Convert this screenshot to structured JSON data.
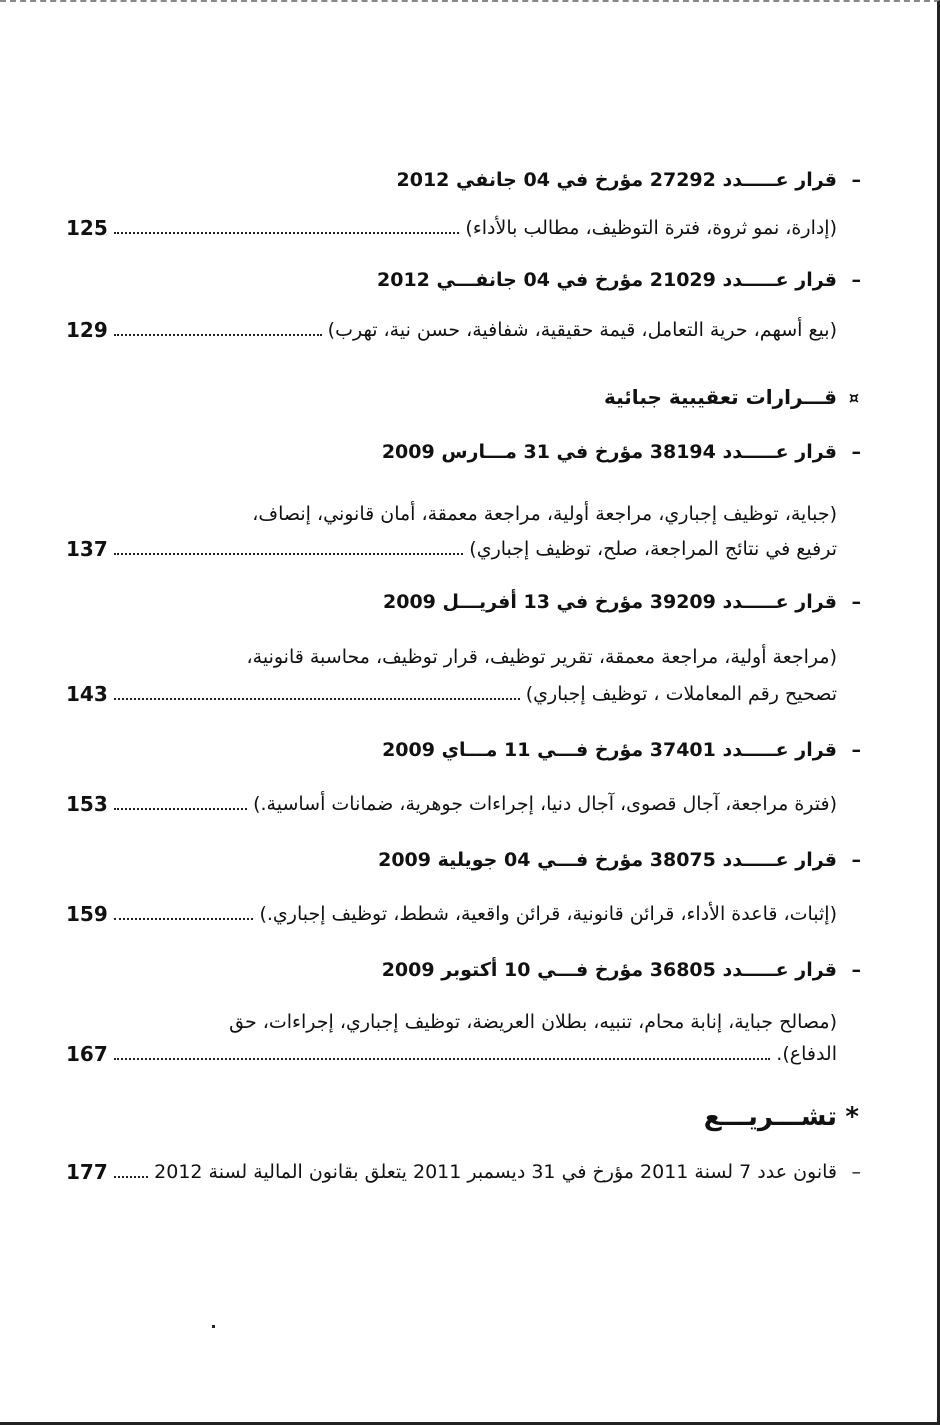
{
  "groups": [
    {
      "entries": [
        {
          "heading": "قرار عـــــدد 27292 مؤرخ في 04 جانفي 2012",
          "description": [
            "(إدارة، نمو ثروة، فترة التوظيف، مطالب بالأداء)"
          ],
          "page": 125
        },
        {
          "heading": "قرار عـــــدد 21029 مؤرخ في 04 جانفـــي 2012",
          "description": [
            "(بيع أسهم، حرية التعامل، قيمة حقيقية، شفافية، حسن نية، تهرب)"
          ],
          "page": 129
        }
      ]
    },
    {
      "title": "قـــرارات تعقيبية جبائية",
      "entries": [
        {
          "heading": "قرار عـــــدد 38194 مؤرخ في 31 مـــارس 2009",
          "description": [
            "(جباية، توظيف إجباري، مراجعة أولية، مراجعة معمقة، أمان قانوني، إنصاف،",
            "ترفيع في نتائج المراجعة، صلح، توظيف إجباري)"
          ],
          "page": 137
        },
        {
          "heading": "قرار عـــــدد 39209 مؤرخ في 13 أفريـــل 2009",
          "description": [
            "(مراجعة أولية، مراجعة معمقة، تقرير توظيف، قرار توظيف، محاسبة قانونية،",
            "تصحيح رقم المعاملات ، توظيف إجباري)"
          ],
          "page": 143
        },
        {
          "heading": "قرار عـــــدد 37401 مؤرخ فـــي 11 مـــاي 2009",
          "description": [
            "(فترة مراجعة، آجال قصوى، آجال دنيا، إجراءات جوهرية، ضمانات أساسية.)"
          ],
          "page": 153
        },
        {
          "heading": "قرار عـــــدد 38075 مؤرخ فـــي 04 جويلية 2009",
          "description": [
            "(إثبات، قاعدة الأداء، قرائن قانونية، قرائن واقعية، شطط، توظيف إجباري.)"
          ],
          "page": 159
        },
        {
          "heading": "قرار عـــــدد 36805 مؤرخ فـــي 10 أكتوبر 2009",
          "description": [
            "(مصالح جباية، إنابة محام، تنبيه، بطلان العريضة، توظيف إجباري، إجراءات، حق",
            "الدفاع)."
          ],
          "page": 167
        }
      ]
    },
    {
      "title": "تشـــريـــع",
      "entries": [
        {
          "description": [
            "قانون عدد 7 لسنة 2011 مؤرخ في 31 ديسمبر 2011 يتعلق بقانون المالية لسنة 2012"
          ],
          "page": 177
        }
      ]
    }
  ]
}
